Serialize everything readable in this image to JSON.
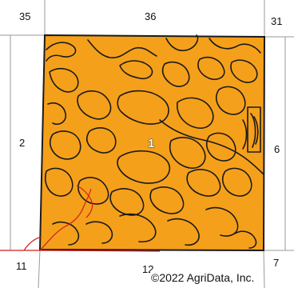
{
  "map": {
    "section_labels": {
      "top_left": "35",
      "top_center": "36",
      "top_right": "31",
      "left": "2",
      "right": "6",
      "bottom_left": "11",
      "bottom_center": "12",
      "bottom_right": "7"
    },
    "soil_unit_label": "1",
    "copyright": "©2022 AgriData, Inc.",
    "colors": {
      "field_fill": "#F5A01A",
      "soil_boundary": "#1a1a1a",
      "section_line": "#9a9a9a",
      "road_line": "#d11f1f",
      "background": "#ffffff"
    }
  }
}
